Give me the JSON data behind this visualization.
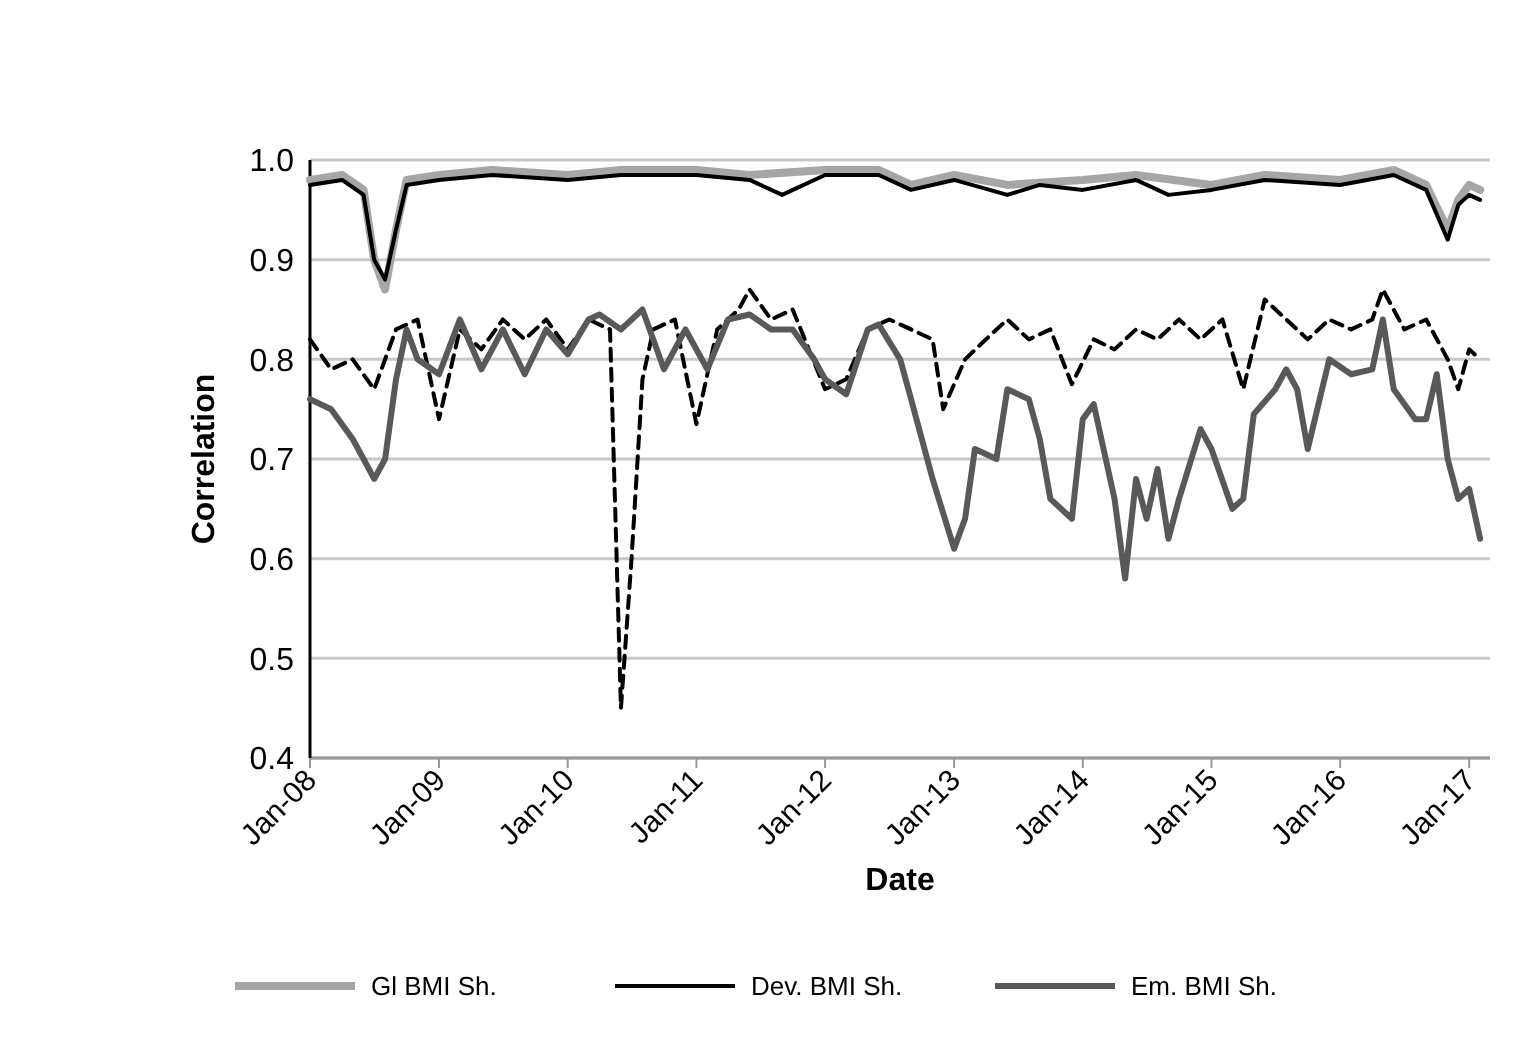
{
  "chart_data": {
    "type": "line",
    "xlabel": "Date",
    "ylabel": "Correlation",
    "xlim": [
      "2008-01",
      "2017-03"
    ],
    "ylim": [
      0.4,
      1.0
    ],
    "xticks": [
      {
        "value": "2008-01",
        "label": "Jan-08"
      },
      {
        "value": "2009-01",
        "label": "Jan-09"
      },
      {
        "value": "2010-01",
        "label": "Jan-10"
      },
      {
        "value": "2011-01",
        "label": "Jan-11"
      },
      {
        "value": "2012-01",
        "label": "Jan-12"
      },
      {
        "value": "2013-01",
        "label": "Jan-13"
      },
      {
        "value": "2014-01",
        "label": "Jan-14"
      },
      {
        "value": "2015-01",
        "label": "Jan-15"
      },
      {
        "value": "2016-01",
        "label": "Jan-16"
      },
      {
        "value": "2017-01",
        "label": "Jan-17"
      }
    ],
    "yticks": [
      {
        "value": 0.4,
        "label": "0.4"
      },
      {
        "value": 0.5,
        "label": "0.5"
      },
      {
        "value": 0.6,
        "label": "0.6"
      },
      {
        "value": 0.7,
        "label": "0.7"
      },
      {
        "value": 0.8,
        "label": "0.8"
      },
      {
        "value": 0.9,
        "label": "0.9"
      },
      {
        "value": 1.0,
        "label": "1.0"
      }
    ],
    "grid": "y",
    "legend": "bottom",
    "series": [
      {
        "name": "Gl BMI Sh.",
        "color": "#a6a6a6",
        "line_style": "solid",
        "x": [
          "2008-01",
          "2008-04",
          "2008-06",
          "2008-07",
          "2008-08",
          "2008-09",
          "2008-10",
          "2009-01",
          "2009-06",
          "2010-01",
          "2010-06",
          "2011-01",
          "2011-06",
          "2012-01",
          "2012-06",
          "2012-09",
          "2013-01",
          "2013-06",
          "2014-01",
          "2014-06",
          "2015-01",
          "2015-06",
          "2016-01",
          "2016-06",
          "2016-09",
          "2016-11",
          "2016-12",
          "2017-01",
          "2017-02"
        ],
        "values": [
          0.98,
          0.985,
          0.97,
          0.9,
          0.87,
          0.93,
          0.98,
          0.985,
          0.99,
          0.985,
          0.99,
          0.99,
          0.985,
          0.99,
          0.99,
          0.975,
          0.985,
          0.975,
          0.98,
          0.985,
          0.975,
          0.985,
          0.98,
          0.99,
          0.975,
          0.93,
          0.96,
          0.975,
          0.97
        ]
      },
      {
        "color": "#000000",
        "line_style": "dashed",
        "x": [
          "2008-01",
          "2008-03",
          "2008-05",
          "2008-07",
          "2008-09",
          "2008-11",
          "2009-01",
          "2009-03",
          "2009-05",
          "2009-07",
          "2009-09",
          "2009-11",
          "2010-01",
          "2010-03",
          "2010-05",
          "2010-06",
          "2010-07",
          "2010-08",
          "2010-09",
          "2010-11",
          "2011-01",
          "2011-03",
          "2011-05",
          "2011-06",
          "2011-08",
          "2011-10",
          "2012-01",
          "2012-03",
          "2012-05",
          "2012-07",
          "2012-09",
          "2012-11",
          "2012-12",
          "2013-02",
          "2013-04",
          "2013-06",
          "2013-08",
          "2013-10",
          "2013-12",
          "2014-02",
          "2014-04",
          "2014-06",
          "2014-08",
          "2014-10",
          "2014-12",
          "2015-02",
          "2015-04",
          "2015-06",
          "2015-08",
          "2015-10",
          "2015-12",
          "2016-02",
          "2016-04",
          "2016-05",
          "2016-07",
          "2016-09",
          "2016-11",
          "2016-12",
          "2017-01",
          "2017-02"
        ],
        "values": [
          0.82,
          0.79,
          0.8,
          0.77,
          0.83,
          0.84,
          0.74,
          0.83,
          0.81,
          0.84,
          0.82,
          0.84,
          0.81,
          0.84,
          0.83,
          0.45,
          0.6,
          0.78,
          0.83,
          0.84,
          0.735,
          0.83,
          0.85,
          0.87,
          0.84,
          0.85,
          0.77,
          0.78,
          0.83,
          0.84,
          0.83,
          0.82,
          0.75,
          0.8,
          0.82,
          0.84,
          0.82,
          0.83,
          0.775,
          0.82,
          0.81,
          0.83,
          0.82,
          0.84,
          0.82,
          0.84,
          0.77,
          0.86,
          0.84,
          0.82,
          0.84,
          0.83,
          0.84,
          0.87,
          0.83,
          0.84,
          0.8,
          0.77,
          0.81,
          0.8
        ]
      },
      {
        "name": "Dev. BMI Sh.",
        "color": "#000000",
        "line_style": "solid",
        "x": [
          "2008-01",
          "2008-04",
          "2008-06",
          "2008-07",
          "2008-08",
          "2008-09",
          "2008-10",
          "2009-01",
          "2009-06",
          "2010-01",
          "2010-06",
          "2011-01",
          "2011-06",
          "2011-09",
          "2012-01",
          "2012-06",
          "2012-09",
          "2013-01",
          "2013-06",
          "2013-09",
          "2014-01",
          "2014-06",
          "2014-09",
          "2015-01",
          "2015-06",
          "2016-01",
          "2016-06",
          "2016-09",
          "2016-11",
          "2016-12",
          "2017-01",
          "2017-02"
        ],
        "values": [
          0.975,
          0.98,
          0.965,
          0.9,
          0.88,
          0.93,
          0.975,
          0.98,
          0.985,
          0.98,
          0.985,
          0.985,
          0.98,
          0.965,
          0.985,
          0.985,
          0.97,
          0.98,
          0.965,
          0.975,
          0.97,
          0.98,
          0.965,
          0.97,
          0.98,
          0.975,
          0.985,
          0.97,
          0.92,
          0.955,
          0.965,
          0.96
        ]
      },
      {
        "name": "Em. BMI Sh.",
        "color": "#595959",
        "line_style": "solid",
        "x": [
          "2008-01",
          "2008-03",
          "2008-05",
          "2008-06",
          "2008-07",
          "2008-08",
          "2008-09",
          "2008-10",
          "2008-11",
          "2009-01",
          "2009-03",
          "2009-05",
          "2009-07",
          "2009-09",
          "2009-11",
          "2010-01",
          "2010-03",
          "2010-04",
          "2010-06",
          "2010-08",
          "2010-10",
          "2010-12",
          "2011-02",
          "2011-04",
          "2011-06",
          "2011-08",
          "2011-10",
          "2011-12",
          "2012-01",
          "2012-03",
          "2012-05",
          "2012-06",
          "2012-08",
          "2012-09",
          "2012-11",
          "2013-01",
          "2013-02",
          "2013-03",
          "2013-05",
          "2013-06",
          "2013-08",
          "2013-09",
          "2013-10",
          "2013-12",
          "2014-01",
          "2014-02",
          "2014-03",
          "2014-04",
          "2014-05",
          "2014-06",
          "2014-07",
          "2014-08",
          "2014-09",
          "2014-10",
          "2014-12",
          "2015-01",
          "2015-03",
          "2015-04",
          "2015-05",
          "2015-07",
          "2015-08",
          "2015-09",
          "2015-10",
          "2015-12",
          "2016-02",
          "2016-04",
          "2016-05",
          "2016-06",
          "2016-08",
          "2016-09",
          "2016-10",
          "2016-11",
          "2016-12",
          "2017-01",
          "2017-02"
        ],
        "values": [
          0.76,
          0.75,
          0.72,
          0.7,
          0.68,
          0.7,
          0.78,
          0.83,
          0.8,
          0.785,
          0.84,
          0.79,
          0.83,
          0.785,
          0.83,
          0.805,
          0.84,
          0.845,
          0.83,
          0.85,
          0.79,
          0.83,
          0.79,
          0.84,
          0.845,
          0.83,
          0.83,
          0.8,
          0.78,
          0.765,
          0.83,
          0.835,
          0.8,
          0.76,
          0.68,
          0.61,
          0.64,
          0.71,
          0.7,
          0.77,
          0.76,
          0.72,
          0.66,
          0.64,
          0.74,
          0.755,
          0.71,
          0.66,
          0.58,
          0.68,
          0.64,
          0.69,
          0.62,
          0.66,
          0.73,
          0.71,
          0.65,
          0.66,
          0.745,
          0.77,
          0.79,
          0.77,
          0.71,
          0.8,
          0.785,
          0.79,
          0.84,
          0.77,
          0.74,
          0.74,
          0.785,
          0.7,
          0.66,
          0.67,
          0.62
        ]
      }
    ]
  }
}
